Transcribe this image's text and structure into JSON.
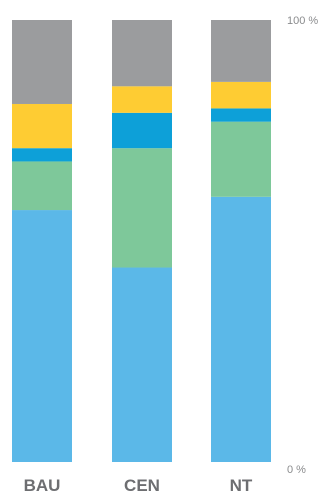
{
  "chart_data": {
    "type": "bar",
    "stacked": true,
    "categories": [
      "BAU",
      "CEN",
      "NT"
    ],
    "series": [
      {
        "color": "#5bb8e8",
        "values": [
          57,
          44,
          60
        ]
      },
      {
        "color": "#7ec89a",
        "values": [
          11,
          27,
          17
        ]
      },
      {
        "color": "#0da0d8",
        "values": [
          3,
          8,
          3
        ]
      },
      {
        "color": "#fecc33",
        "values": [
          10,
          6,
          6
        ]
      },
      {
        "color": "#9b9c9e",
        "values": [
          19,
          15,
          14
        ]
      }
    ],
    "y_ticks": [
      {
        "value": 0,
        "label": "0 %"
      },
      {
        "value": 100,
        "label": "100 %"
      }
    ],
    "ylim": [
      0,
      100
    ],
    "xlabel": "",
    "ylabel": "",
    "title": "",
    "legend": "none",
    "grid": false
  }
}
